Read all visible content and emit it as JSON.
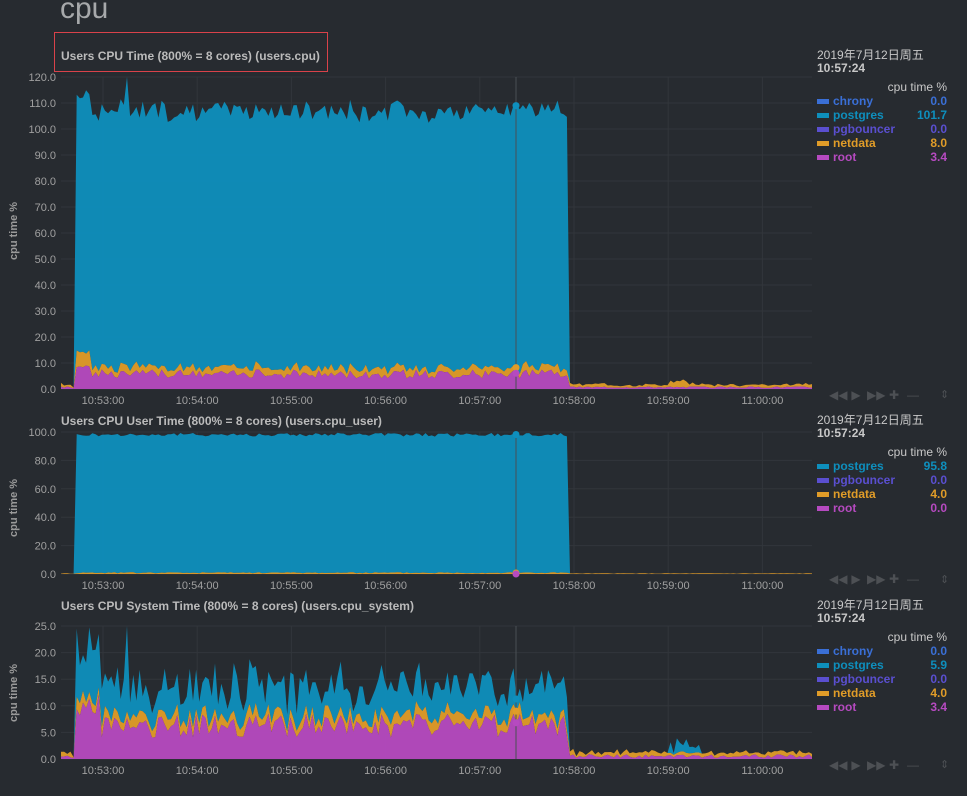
{
  "section": {
    "title": "cpu"
  },
  "charts": [
    {
      "id": "users.cpu",
      "title": "Users CPU Time (800% = 8 cores) (users.cpu)",
      "ylabel": "cpu time %",
      "yticks": [
        "0.0",
        "10.0",
        "20.0",
        "30.0",
        "40.0",
        "50.0",
        "60.0",
        "70.0",
        "80.0",
        "90.0",
        "100.0",
        "110.0",
        "120.0"
      ],
      "xticks": [
        "10:53:00",
        "10:54:00",
        "10:55:00",
        "10:56:00",
        "10:57:00",
        "10:58:00",
        "10:59:00",
        "11:00:00"
      ],
      "legend_date": "2019年7月12日周五",
      "legend_time": "10:57:24",
      "units": "cpu time %",
      "dimensions": [
        {
          "name": "chrony",
          "value": "0.0",
          "color": "#3a6fd6"
        },
        {
          "name": "postgres",
          "value": "101.7",
          "color": "#0e8fbd"
        },
        {
          "name": "pgbouncer",
          "value": "0.0",
          "color": "#5a4fd0"
        },
        {
          "name": "netdata",
          "value": "8.0",
          "color": "#e09c28"
        },
        {
          "name": "root",
          "value": "3.4",
          "color": "#b64ac0"
        }
      ]
    },
    {
      "id": "users.cpu_user",
      "title": "Users CPU User Time (800% = 8 cores) (users.cpu_user)",
      "ylabel": "cpu time %",
      "yticks": [
        "0.0",
        "20.0",
        "40.0",
        "60.0",
        "80.0",
        "100.0"
      ],
      "xticks": [
        "10:53:00",
        "10:54:00",
        "10:55:00",
        "10:56:00",
        "10:57:00",
        "10:58:00",
        "10:59:00",
        "11:00:00"
      ],
      "legend_date": "2019年7月12日周五",
      "legend_time": "10:57:24",
      "units": "cpu time %",
      "dimensions": [
        {
          "name": "postgres",
          "value": "95.8",
          "color": "#0e8fbd"
        },
        {
          "name": "pgbouncer",
          "value": "0.0",
          "color": "#5a4fd0"
        },
        {
          "name": "netdata",
          "value": "4.0",
          "color": "#e09c28"
        },
        {
          "name": "root",
          "value": "0.0",
          "color": "#b64ac0"
        }
      ]
    },
    {
      "id": "users.cpu_system",
      "title": "Users CPU System Time (800% = 8 cores) (users.cpu_system)",
      "ylabel": "cpu time %",
      "yticks": [
        "0.0",
        "5.0",
        "10.0",
        "15.0",
        "20.0",
        "25.0"
      ],
      "xticks": [
        "10:53:00",
        "10:54:00",
        "10:55:00",
        "10:56:00",
        "10:57:00",
        "10:58:00",
        "10:59:00",
        "11:00:00"
      ],
      "legend_date": "2019年7月12日周五",
      "legend_time": "10:57:24",
      "units": "cpu time %",
      "dimensions": [
        {
          "name": "chrony",
          "value": "0.0",
          "color": "#3a6fd6"
        },
        {
          "name": "postgres",
          "value": "5.9",
          "color": "#0e8fbd"
        },
        {
          "name": "pgbouncer",
          "value": "0.0",
          "color": "#5a4fd0"
        },
        {
          "name": "netdata",
          "value": "4.0",
          "color": "#e09c28"
        },
        {
          "name": "root",
          "value": "3.4",
          "color": "#b64ac0"
        }
      ]
    }
  ],
  "toolbar_icons": [
    "pan-left-icon",
    "play-icon",
    "pan-right-icon",
    "zoom-in-icon",
    "zoom-out-icon"
  ],
  "colors": {
    "background": "#272b30",
    "grid": "#32363b",
    "postgres": "#0e8fbd",
    "netdata": "#e09c28",
    "root": "#b64ac0",
    "chrony": "#3a6fd6",
    "pgbouncer": "#5a4fd0"
  }
}
